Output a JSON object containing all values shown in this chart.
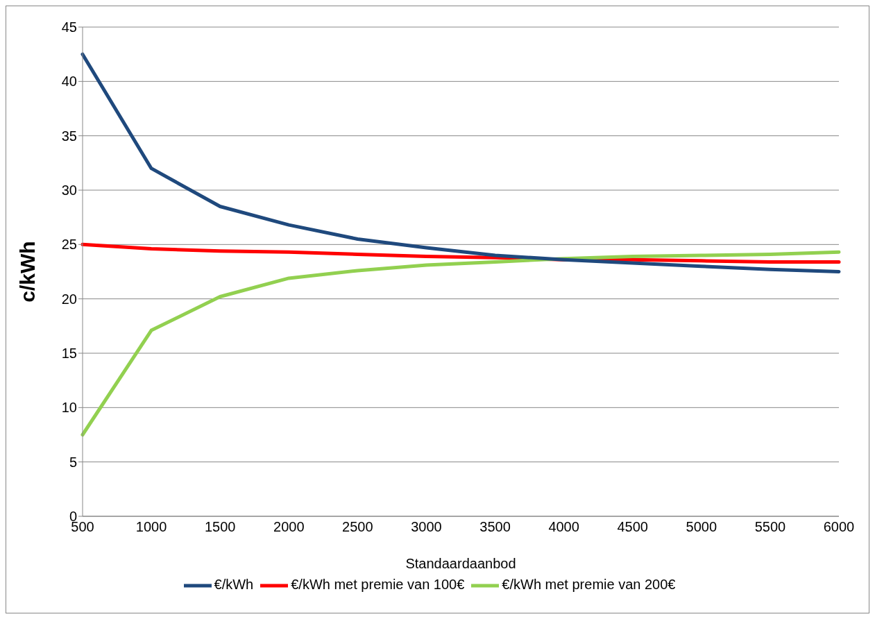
{
  "chart_data": {
    "type": "line",
    "xlabel": "Standaardaanbod",
    "ylabel": "c/kWh",
    "categories": [
      "500",
      "1000",
      "1500",
      "2000",
      "2500",
      "3000",
      "3500",
      "4000",
      "4500",
      "5000",
      "5500",
      "6000"
    ],
    "series": [
      {
        "name": "€/kWh met premie van 100€",
        "color": "#ff0000",
        "values": [
          25.0,
          24.6,
          24.4,
          24.3,
          24.1,
          23.9,
          23.8,
          23.6,
          23.6,
          23.5,
          23.4,
          23.4
        ]
      },
      {
        "name": "€/kWh met premie van 200€",
        "color": "#92d050",
        "values": [
          7.5,
          17.1,
          20.2,
          21.9,
          22.6,
          23.1,
          23.4,
          23.7,
          23.9,
          24.0,
          24.1,
          24.3
        ]
      },
      {
        "name": "€/kWh",
        "color": "#1f497d",
        "values": [
          42.5,
          32.0,
          28.5,
          26.8,
          25.5,
          24.7,
          24.0,
          23.6,
          23.3,
          23.0,
          22.7,
          22.5
        ]
      }
    ],
    "ylim": [
      0,
      45
    ],
    "yticks": [
      0,
      5,
      10,
      15,
      20,
      25,
      30,
      35,
      40,
      45
    ],
    "grid": "y",
    "legend": "bottom",
    "marker": "none",
    "line_style": "solid"
  }
}
